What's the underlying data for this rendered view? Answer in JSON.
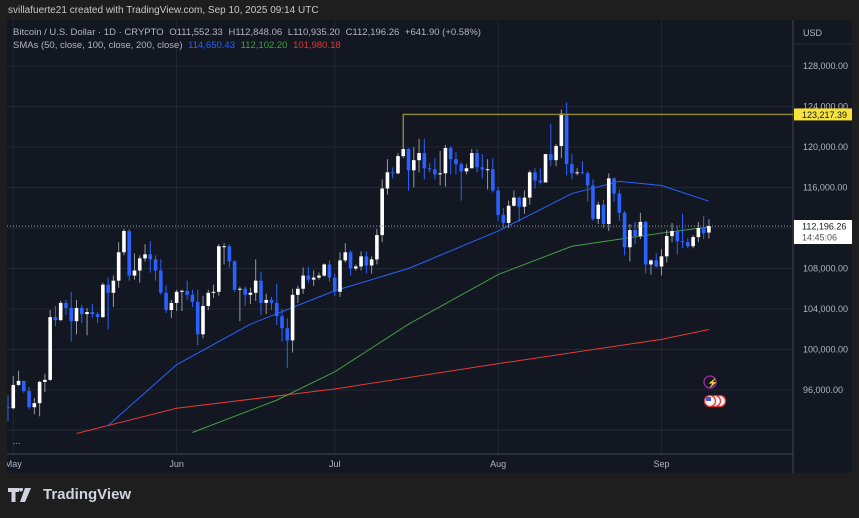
{
  "credit": "svillafuerte21 created with TradingView.com, Sep 10, 2025 09:14 UTC",
  "legend": {
    "symbol": "Bitcoin / U.S. Dollar · 1D · CRYPTO",
    "open": "O111,552.33",
    "high": "H112,848.06",
    "low": "L110,935.20",
    "close": "C112,196.26",
    "change": "+641.90 (+0.58%)",
    "sma_label": "SMAs (50, close, 100, close, 200, close)",
    "sma50": "114,650.43",
    "sma100": "112,102.20",
    "sma200": "101,980.18"
  },
  "currency": "USD",
  "indicator_pane_more": "...",
  "brand": "TradingView",
  "colors": {
    "up": "#ffffff",
    "down": "#2962ff",
    "sma50": "#2962ff",
    "sma100": "#43a047",
    "sma200": "#e53935",
    "highlight": "#f5e33b",
    "bg": "#131722"
  },
  "icons": [
    "tradingview-logo-icon",
    "lightning-event-icon",
    "us-flag-event-icon"
  ],
  "chart_data": {
    "type": "candlestick",
    "ylim": [
      92000,
      130000
    ],
    "y_ticks": [
      "128,000.00",
      "124,000.00",
      "120,000.00",
      "116,000.00",
      "108,000.00",
      "104,000.00",
      "100,000.00",
      "96,000.00"
    ],
    "x_ticks": [
      {
        "label": "May",
        "date": "2025-05-01"
      },
      {
        "label": "Jun",
        "date": "2025-06-01"
      },
      {
        "label": "Jul",
        "date": "2025-07-01"
      },
      {
        "label": "Aug",
        "date": "2025-08-01"
      },
      {
        "label": "Sep",
        "date": "2025-09-01"
      }
    ],
    "last_price": {
      "value": 112196.26,
      "label": "112,196.26",
      "countdown": "14:45:06"
    },
    "horizontal_line": {
      "value": 123217.39,
      "label": "123,217.39",
      "from": "2025-07-14"
    },
    "candles": [
      [
        "2025-04-30",
        94300,
        95500,
        92900,
        94200
      ],
      [
        "2025-05-01",
        94200,
        97400,
        94100,
        96500
      ],
      [
        "2025-05-02",
        96500,
        97900,
        96400,
        96900
      ],
      [
        "2025-05-03",
        96900,
        96900,
        95700,
        95900
      ],
      [
        "2025-05-04",
        95900,
        96300,
        94100,
        94300
      ],
      [
        "2025-05-05",
        94300,
        95200,
        93600,
        94700
      ],
      [
        "2025-05-06",
        94700,
        96900,
        93400,
        96800
      ],
      [
        "2025-05-07",
        96800,
        97600,
        95800,
        97000
      ],
      [
        "2025-05-08",
        97000,
        103900,
        96900,
        103200
      ],
      [
        "2025-05-09",
        103200,
        104300,
        102300,
        102900
      ],
      [
        "2025-05-10",
        102900,
        104800,
        102800,
        104600
      ],
      [
        "2025-05-11",
        104600,
        104900,
        103400,
        104100
      ],
      [
        "2025-05-12",
        104100,
        105700,
        100800,
        102800
      ],
      [
        "2025-05-13",
        102800,
        104900,
        101500,
        104100
      ],
      [
        "2025-05-14",
        104100,
        104400,
        102600,
        103500
      ],
      [
        "2025-05-15",
        103500,
        104100,
        101400,
        103700
      ],
      [
        "2025-05-16",
        103700,
        104500,
        103100,
        103500
      ],
      [
        "2025-05-17",
        103500,
        103700,
        102600,
        103200
      ],
      [
        "2025-05-18",
        103200,
        106600,
        103100,
        106400
      ],
      [
        "2025-05-19",
        106400,
        107100,
        102000,
        105600
      ],
      [
        "2025-05-20",
        105600,
        107300,
        104200,
        106800
      ],
      [
        "2025-05-21",
        106800,
        110600,
        106100,
        109600
      ],
      [
        "2025-05-22",
        109600,
        111900,
        109300,
        111700
      ],
      [
        "2025-05-23",
        111700,
        111900,
        106800,
        107300
      ],
      [
        "2025-05-24",
        107300,
        109500,
        106900,
        107800
      ],
      [
        "2025-05-25",
        107800,
        109300,
        106600,
        109000
      ],
      [
        "2025-05-26",
        109000,
        110400,
        108700,
        109400
      ],
      [
        "2025-05-27",
        109400,
        110700,
        107600,
        108900
      ],
      [
        "2025-05-28",
        108900,
        109300,
        106800,
        107800
      ],
      [
        "2025-05-29",
        107800,
        108900,
        105400,
        105600
      ],
      [
        "2025-05-30",
        105600,
        106300,
        103600,
        103900
      ],
      [
        "2025-05-31",
        103900,
        104900,
        103100,
        104600
      ],
      [
        "2025-06-01",
        104600,
        105900,
        103800,
        105700
      ],
      [
        "2025-06-02",
        105700,
        105900,
        103800,
        105800
      ],
      [
        "2025-06-03",
        105800,
        106800,
        104900,
        105400
      ],
      [
        "2025-06-04",
        105400,
        105900,
        104200,
        104700
      ],
      [
        "2025-06-05",
        104700,
        105900,
        100400,
        101500
      ],
      [
        "2025-06-06",
        101500,
        105300,
        101100,
        104300
      ],
      [
        "2025-06-07",
        104300,
        105900,
        103900,
        105600
      ],
      [
        "2025-06-08",
        105600,
        106400,
        105100,
        105700
      ],
      [
        "2025-06-09",
        105700,
        110400,
        105300,
        110200
      ],
      [
        "2025-06-10",
        110200,
        110500,
        108400,
        110200
      ],
      [
        "2025-06-11",
        110200,
        110400,
        108100,
        108700
      ],
      [
        "2025-06-12",
        108700,
        108800,
        105700,
        105900
      ],
      [
        "2025-06-13",
        105900,
        106200,
        102800,
        106000
      ],
      [
        "2025-06-14",
        106000,
        106200,
        104300,
        105400
      ],
      [
        "2025-06-15",
        105400,
        106100,
        104500,
        105600
      ],
      [
        "2025-06-16",
        105600,
        108900,
        104800,
        106800
      ],
      [
        "2025-06-17",
        106800,
        107700,
        103400,
        104600
      ],
      [
        "2025-06-18",
        104600,
        105500,
        103500,
        104900
      ],
      [
        "2025-06-19",
        104900,
        105200,
        103900,
        104600
      ],
      [
        "2025-06-20",
        104600,
        106500,
        102400,
        103300
      ],
      [
        "2025-06-21",
        103300,
        104000,
        100800,
        102100
      ],
      [
        "2025-06-22",
        102100,
        103100,
        98200,
        100900
      ],
      [
        "2025-06-23",
        100900,
        106000,
        99700,
        105400
      ],
      [
        "2025-06-24",
        105400,
        106300,
        104600,
        106000
      ],
      [
        "2025-06-25",
        106000,
        108100,
        105500,
        107300
      ],
      [
        "2025-06-26",
        107300,
        108200,
        106600,
        106900
      ],
      [
        "2025-06-27",
        106900,
        107800,
        106300,
        107100
      ],
      [
        "2025-06-28",
        107100,
        107600,
        106900,
        107300
      ],
      [
        "2025-06-29",
        107300,
        108500,
        107200,
        108400
      ],
      [
        "2025-06-30",
        108400,
        108800,
        106700,
        107100
      ],
      [
        "2025-07-01",
        107100,
        107500,
        105300,
        105700
      ],
      [
        "2025-07-02",
        105700,
        109600,
        105200,
        108800
      ],
      [
        "2025-07-03",
        108800,
        110500,
        108600,
        109600
      ],
      [
        "2025-07-04",
        109600,
        109800,
        107300,
        108000
      ],
      [
        "2025-07-05",
        108000,
        108400,
        107800,
        108200
      ],
      [
        "2025-07-06",
        108200,
        109700,
        107800,
        109200
      ],
      [
        "2025-07-07",
        109200,
        109700,
        107500,
        108300
      ],
      [
        "2025-07-08",
        108300,
        109200,
        107500,
        108900
      ],
      [
        "2025-07-09",
        108900,
        111900,
        108400,
        111300
      ],
      [
        "2025-07-10",
        111300,
        116800,
        110600,
        115900
      ],
      [
        "2025-07-11",
        115900,
        118800,
        115300,
        117500
      ],
      [
        "2025-07-12",
        117500,
        118000,
        116900,
        117400
      ],
      [
        "2025-07-13",
        117400,
        119400,
        117300,
        119100
      ],
      [
        "2025-07-14",
        119100,
        123200,
        118900,
        119800
      ],
      [
        "2025-07-15",
        119800,
        119900,
        115700,
        117700
      ],
      [
        "2025-07-16",
        117700,
        120000,
        116000,
        118700
      ],
      [
        "2025-07-17",
        118700,
        120800,
        117500,
        119400
      ],
      [
        "2025-07-18",
        119400,
        120800,
        116800,
        117900
      ],
      [
        "2025-07-19",
        117900,
        118400,
        117500,
        117800
      ],
      [
        "2025-07-20",
        117800,
        118900,
        116800,
        117300
      ],
      [
        "2025-07-21",
        117300,
        119600,
        116200,
        117400
      ],
      [
        "2025-07-22",
        117400,
        120200,
        116100,
        119900
      ],
      [
        "2025-07-23",
        119900,
        120100,
        117300,
        118800
      ],
      [
        "2025-07-24",
        118800,
        119500,
        117300,
        118300
      ],
      [
        "2025-07-25",
        118300,
        118500,
        114700,
        117600
      ],
      [
        "2025-07-26",
        117600,
        118300,
        117300,
        117900
      ],
      [
        "2025-07-27",
        117900,
        119800,
        117900,
        119400
      ],
      [
        "2025-07-28",
        119400,
        119800,
        117500,
        118000
      ],
      [
        "2025-07-29",
        118000,
        119300,
        116900,
        117800
      ],
      [
        "2025-07-30",
        117800,
        118800,
        115800,
        117800
      ],
      [
        "2025-07-31",
        117800,
        118900,
        115500,
        115700
      ],
      [
        "2025-08-01",
        115700,
        116100,
        112700,
        113300
      ],
      [
        "2025-08-02",
        113300,
        114000,
        112000,
        112500
      ],
      [
        "2025-08-03",
        112500,
        114700,
        112000,
        114200
      ],
      [
        "2025-08-04",
        114200,
        115700,
        114100,
        115000
      ],
      [
        "2025-08-05",
        115000,
        115100,
        112600,
        114100
      ],
      [
        "2025-08-06",
        114100,
        115700,
        113400,
        115000
      ],
      [
        "2025-08-07",
        115000,
        117700,
        114300,
        117500
      ],
      [
        "2025-08-08",
        117500,
        117900,
        115900,
        116700
      ],
      [
        "2025-08-09",
        116700,
        117900,
        116300,
        116500
      ],
      [
        "2025-08-10",
        116500,
        119300,
        116500,
        119300
      ],
      [
        "2025-08-11",
        119300,
        122300,
        118100,
        118700
      ],
      [
        "2025-08-12",
        118700,
        120300,
        118100,
        120100
      ],
      [
        "2025-08-13",
        120100,
        123700,
        118900,
        123300
      ],
      [
        "2025-08-14",
        123300,
        124400,
        117200,
        118300
      ],
      [
        "2025-08-15",
        118300,
        119300,
        116800,
        117400
      ],
      [
        "2025-08-16",
        117400,
        117900,
        117200,
        117500
      ],
      [
        "2025-08-17",
        117500,
        118600,
        117300,
        117400
      ],
      [
        "2025-08-18",
        117400,
        117600,
        114600,
        116200
      ],
      [
        "2025-08-19",
        116200,
        116800,
        112700,
        112900
      ],
      [
        "2025-08-20",
        112900,
        114600,
        112400,
        114300
      ],
      [
        "2025-08-21",
        114300,
        114800,
        112000,
        112400
      ],
      [
        "2025-08-22",
        112400,
        117400,
        111700,
        116900
      ],
      [
        "2025-08-23",
        116900,
        117000,
        114600,
        115400
      ],
      [
        "2025-08-24",
        115400,
        115800,
        112700,
        113500
      ],
      [
        "2025-08-25",
        113500,
        113700,
        109300,
        110100
      ],
      [
        "2025-08-26",
        110100,
        112400,
        108700,
        111800
      ],
      [
        "2025-08-27",
        111800,
        112600,
        110400,
        111200
      ],
      [
        "2025-08-28",
        111200,
        113500,
        110900,
        112600
      ],
      [
        "2025-08-29",
        112600,
        112700,
        107500,
        108400
      ],
      [
        "2025-08-30",
        108400,
        108900,
        107400,
        108800
      ],
      [
        "2025-08-31",
        108800,
        109500,
        108100,
        108200
      ],
      [
        "2025-09-01",
        108200,
        109900,
        107300,
        109200
      ],
      [
        "2025-09-02",
        109200,
        111800,
        108600,
        111200
      ],
      [
        "2025-09-03",
        111200,
        112500,
        110600,
        111700
      ],
      [
        "2025-09-04",
        111700,
        112200,
        109400,
        110700
      ],
      [
        "2025-09-05",
        110700,
        113400,
        110000,
        110600
      ],
      [
        "2025-09-06",
        110600,
        111000,
        110000,
        110200
      ],
      [
        "2025-09-07",
        110200,
        111300,
        110000,
        111100
      ],
      [
        "2025-09-08",
        111100,
        112600,
        110600,
        112000
      ],
      [
        "2025-09-09",
        112000,
        113200,
        110900,
        111500
      ],
      [
        "2025-09-10",
        111550,
        112850,
        110940,
        112196
      ]
    ],
    "sma50": [
      [
        "2025-05-19",
        92500
      ],
      [
        "2025-06-01",
        98500
      ],
      [
        "2025-06-15",
        102500
      ],
      [
        "2025-07-01",
        105800
      ],
      [
        "2025-07-15",
        108000
      ],
      [
        "2025-08-01",
        111700
      ],
      [
        "2025-08-15",
        115400
      ],
      [
        "2025-08-24",
        116600
      ],
      [
        "2025-09-01",
        116200
      ],
      [
        "2025-09-10",
        114650
      ]
    ],
    "sma100": [
      [
        "2025-06-04",
        91800
      ],
      [
        "2025-06-20",
        95000
      ],
      [
        "2025-07-01",
        97800
      ],
      [
        "2025-07-15",
        102500
      ],
      [
        "2025-08-01",
        107400
      ],
      [
        "2025-08-15",
        110200
      ],
      [
        "2025-09-01",
        111500
      ],
      [
        "2025-09-10",
        112102
      ]
    ],
    "sma200": [
      [
        "2025-05-13",
        91700
      ],
      [
        "2025-06-01",
        94200
      ],
      [
        "2025-07-01",
        96100
      ],
      [
        "2025-08-01",
        98600
      ],
      [
        "2025-09-01",
        101000
      ],
      [
        "2025-09-10",
        101980
      ]
    ]
  }
}
